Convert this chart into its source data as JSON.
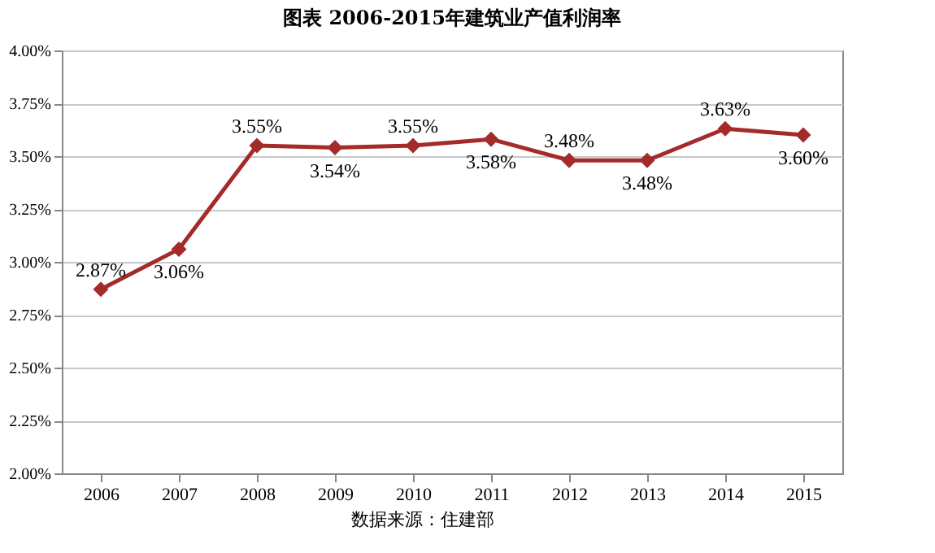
{
  "chart_data": {
    "type": "line",
    "title": "图表    2006-2015年建筑业产值利润率",
    "categories": [
      "2006",
      "2007",
      "2008",
      "2009",
      "2010",
      "2011",
      "2012",
      "2013",
      "2014",
      "2015"
    ],
    "series": [
      {
        "color": "#a52a2a",
        "values": [
          2.87,
          3.06,
          3.55,
          3.54,
          3.55,
          3.58,
          3.48,
          3.48,
          3.63,
          3.6
        ],
        "value_labels": [
          "2.87%",
          "3.06%",
          "3.55%",
          "3.54%",
          "3.55%",
          "3.58%",
          "3.48%",
          "3.48%",
          "3.63%",
          "3.60%"
        ]
      }
    ],
    "ylim": [
      2,
      4
    ],
    "yticks": [
      {
        "value": 2,
        "label": "2.00%"
      },
      {
        "value": 2.25,
        "label": "2.25%"
      },
      {
        "value": 2.5,
        "label": "2.50%"
      },
      {
        "value": 2.75,
        "label": "2.75%"
      },
      {
        "value": 3,
        "label": "3.00%"
      },
      {
        "value": 3.25,
        "label": "3.25%"
      },
      {
        "value": 3.5,
        "label": "3.50%"
      },
      {
        "value": 3.75,
        "label": "3.75%"
      },
      {
        "value": 4,
        "label": "4.00%"
      }
    ],
    "grid": "y",
    "marker": "diamond",
    "line_style": "solid",
    "legend": false,
    "annotations": [
      "数据来源：住建部"
    ]
  }
}
